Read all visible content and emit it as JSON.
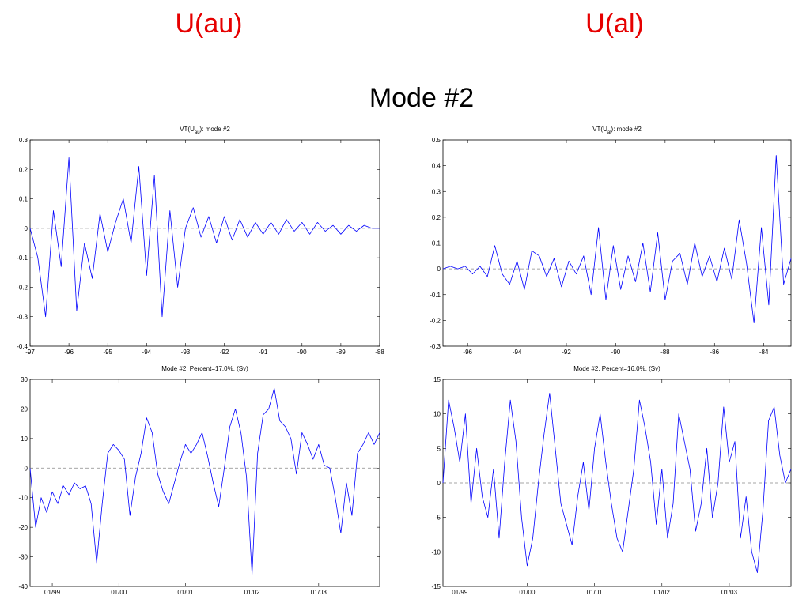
{
  "slide": {
    "headers": [
      "U(au)",
      "U(al)"
    ],
    "title": "Mode #2"
  },
  "chart_data": [
    {
      "type": "line",
      "title": [
        "VT(U",
        "au",
        "): mode #2"
      ],
      "x": [
        -97,
        -96.8,
        -96.6,
        -96.4,
        -96.2,
        -96,
        -95.8,
        -95.6,
        -95.4,
        -95.2,
        -95,
        -94.8,
        -94.6,
        -94.4,
        -94.2,
        -94,
        -93.8,
        -93.6,
        -93.4,
        -93.2,
        -93,
        -92.8,
        -92.6,
        -92.4,
        -92.2,
        -92,
        -91.8,
        -91.6,
        -91.4,
        -91.2,
        -91,
        -90.8,
        -90.6,
        -90.4,
        -90.2,
        -90,
        -89.8,
        -89.6,
        -89.4,
        -89.2,
        -89,
        -88.8,
        -88.6,
        -88.4,
        -88.2,
        -88
      ],
      "series": [
        {
          "color": "#0000ff",
          "values": [
            0,
            -0.1,
            -0.3,
            0.06,
            -0.13,
            0.24,
            -0.28,
            -0.05,
            -0.17,
            0.05,
            -0.08,
            0.02,
            0.1,
            -0.05,
            0.21,
            -0.16,
            0.18,
            -0.3,
            0.06,
            -0.2,
            0,
            0.07,
            -0.03,
            0.04,
            -0.05,
            0.04,
            -0.04,
            0.03,
            -0.03,
            0.02,
            -0.02,
            0.02,
            -0.02,
            0.03,
            -0.01,
            0.02,
            -0.02,
            0.02,
            -0.01,
            0.01,
            -0.02,
            0.01,
            -0.01,
            0.01,
            0,
            0
          ]
        }
      ],
      "xlim": [
        -97,
        -88
      ],
      "xticks": [
        -97,
        -96,
        -95,
        -94,
        -93,
        -92,
        -91,
        -90,
        -89,
        -88
      ],
      "ylim": [
        -0.4,
        0.3
      ],
      "yticks": [
        -0.4,
        -0.3,
        -0.2,
        -0.1,
        0,
        0.1,
        0.2,
        0.3
      ],
      "hline": 0
    },
    {
      "type": "line",
      "title": [
        "VT(U",
        "al",
        "): mode #2"
      ],
      "x": [
        -97,
        -96.7,
        -96.4,
        -96.1,
        -95.8,
        -95.5,
        -95.2,
        -94.9,
        -94.6,
        -94.3,
        -94,
        -93.7,
        -93.4,
        -93.1,
        -92.8,
        -92.5,
        -92.2,
        -91.9,
        -91.6,
        -91.3,
        -91,
        -90.7,
        -90.4,
        -90.1,
        -89.8,
        -89.5,
        -89.2,
        -88.9,
        -88.6,
        -88.3,
        -88,
        -87.7,
        -87.4,
        -87.1,
        -86.8,
        -86.5,
        -86.2,
        -85.9,
        -85.6,
        -85.3,
        -85,
        -84.7,
        -84.4,
        -84.1,
        -83.8,
        -83.5,
        -83.2,
        -82.9
      ],
      "series": [
        {
          "color": "#0000ff",
          "values": [
            0,
            0.01,
            0,
            0.01,
            -0.02,
            0.01,
            -0.03,
            0.09,
            -0.02,
            -0.06,
            0.03,
            -0.08,
            0.07,
            0.05,
            -0.03,
            0.04,
            -0.07,
            0.03,
            -0.02,
            0.05,
            -0.1,
            0.16,
            -0.12,
            0.09,
            -0.08,
            0.05,
            -0.05,
            0.1,
            -0.09,
            0.14,
            -0.12,
            0.03,
            0.06,
            -0.06,
            0.1,
            -0.03,
            0.05,
            -0.05,
            0.08,
            -0.04,
            0.19,
            0.02,
            -0.21,
            0.16,
            -0.14,
            0.44,
            -0.06,
            0.04
          ]
        }
      ],
      "xlim": [
        -97,
        -82.9
      ],
      "xticks": [
        -96,
        -94,
        -92,
        -90,
        -88,
        -86,
        -84
      ],
      "ylim": [
        -0.3,
        0.5
      ],
      "yticks": [
        -0.3,
        -0.2,
        -0.1,
        0,
        0.1,
        0.2,
        0.3,
        0.4,
        0.5
      ],
      "hline": 0
    },
    {
      "type": "line",
      "title": "Mode #2, Percent=17.0%, (Sv)",
      "categories": [
        null,
        null,
        null,
        null,
        "01/99",
        null,
        null,
        null,
        null,
        null,
        null,
        null,
        null,
        null,
        null,
        null,
        "01/00",
        null,
        null,
        null,
        null,
        null,
        null,
        null,
        null,
        null,
        null,
        null,
        "01/01",
        null,
        null,
        null,
        null,
        null,
        null,
        null,
        null,
        null,
        null,
        null,
        "01/02",
        null,
        null,
        null,
        null,
        null,
        null,
        null,
        null,
        null,
        null,
        null,
        "01/03",
        null,
        null,
        null,
        null,
        null,
        null,
        null,
        null,
        null,
        null,
        null
      ],
      "series": [
        {
          "color": "#0000ff",
          "values": [
            0,
            -20,
            -10,
            -15,
            -8,
            -12,
            -6,
            -9,
            -5,
            -7,
            -6,
            -12,
            -32,
            -12,
            5,
            8,
            6,
            3,
            -16,
            -3,
            5,
            17,
            12,
            -2,
            -8,
            -12,
            -5,
            2,
            8,
            5,
            8,
            12,
            4,
            -5,
            -13,
            0,
            14,
            20,
            12,
            -3,
            -36,
            5,
            18,
            20,
            27,
            16,
            14,
            10,
            -2,
            12,
            8,
            3,
            8,
            1,
            0,
            -10,
            -22,
            -5,
            -16,
            5,
            8,
            12,
            8,
            12
          ]
        }
      ],
      "ylim": [
        -40,
        30
      ],
      "yticks": [
        -40,
        -30,
        -20,
        -10,
        0,
        10,
        20,
        30
      ],
      "hline": 0
    },
    {
      "type": "line",
      "title": "Mode #2, Percent=16.0%, (Sv)",
      "categories": [
        null,
        null,
        null,
        "01/99",
        null,
        null,
        null,
        null,
        null,
        null,
        null,
        null,
        null,
        null,
        null,
        "01/00",
        null,
        null,
        null,
        null,
        null,
        null,
        null,
        null,
        null,
        null,
        null,
        "01/01",
        null,
        null,
        null,
        null,
        null,
        null,
        null,
        null,
        null,
        null,
        null,
        "01/02",
        null,
        null,
        null,
        null,
        null,
        null,
        null,
        null,
        null,
        null,
        null,
        "01/03",
        null,
        null,
        null,
        null,
        null,
        null,
        null,
        null,
        null,
        null,
        null
      ],
      "series": [
        {
          "color": "#0000ff",
          "values": [
            0,
            12,
            8,
            3,
            10,
            -3,
            5,
            -2,
            -5,
            2,
            -8,
            3,
            12,
            6,
            -5,
            -12,
            -8,
            0,
            7,
            13,
            5,
            -3,
            -6,
            -9,
            -2,
            3,
            -4,
            5,
            10,
            3,
            -3,
            -8,
            -10,
            -4,
            2,
            12,
            8,
            3,
            -6,
            2,
            -8,
            -3,
            10,
            6,
            2,
            -7,
            -3,
            5,
            -5,
            0,
            11,
            3,
            6,
            -8,
            -2,
            -10,
            -13,
            -4,
            9,
            11,
            4,
            0,
            2
          ]
        }
      ],
      "ylim": [
        -15,
        15
      ],
      "yticks": [
        -15,
        -10,
        -5,
        0,
        5,
        10,
        15
      ],
      "hline": 0
    }
  ]
}
